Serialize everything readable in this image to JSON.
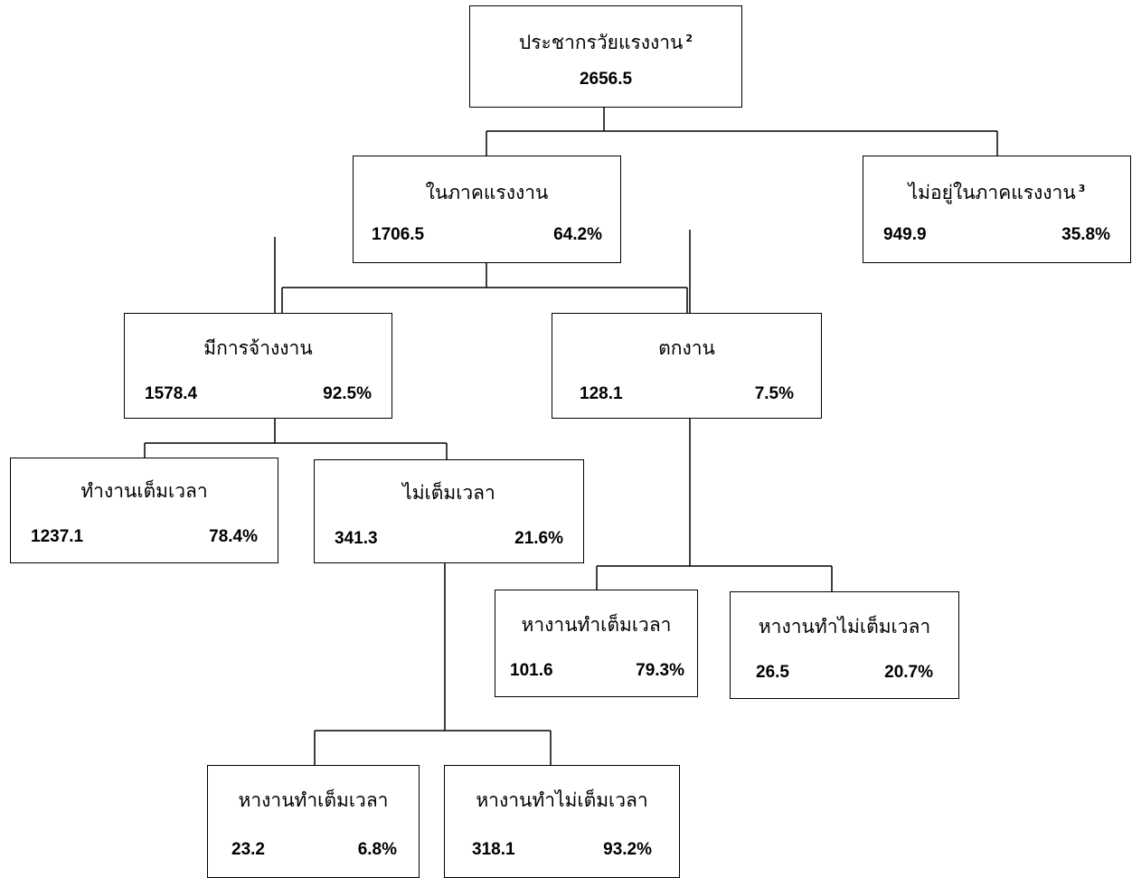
{
  "diagram": {
    "root": {
      "title": "ประชากรวัยแรงงาน",
      "note": "2",
      "value": "2656.5"
    },
    "labor_force": {
      "title": "ในภาคแรงงาน",
      "value": "1706.5",
      "percent": "64.2%"
    },
    "not_in_labor_force": {
      "title": "ไม่อยู่ในภาคแรงงาน",
      "note": "3",
      "value": "949.9",
      "percent": "35.8%"
    },
    "employed": {
      "title": "มีการจ้างงาน",
      "value": "1578.4",
      "percent": "92.5%"
    },
    "unemployed": {
      "title": "ตกงาน",
      "value": "128.1",
      "percent": "7.5%"
    },
    "full_time": {
      "title": "ทำงานเต็มเวลา",
      "value": "1237.1",
      "percent": "78.4%"
    },
    "part_time": {
      "title": "ไม่เต็มเวลา",
      "value": "341.3",
      "percent": "21.6%"
    },
    "unemp_seek_full": {
      "title": "หางานทำเต็มเวลา",
      "value": "101.6",
      "percent": "79.3%"
    },
    "unemp_seek_part": {
      "title": "หางานทำไม่เต็มเวลา",
      "value": "26.5",
      "percent": "20.7%"
    },
    "part_seek_full": {
      "title": "หางานทำเต็มเวลา",
      "value": "23.2",
      "percent": "6.8%"
    },
    "part_seek_part": {
      "title": "หางานทำไม่เต็มเวลา",
      "value": "318.1",
      "percent": "93.2%"
    }
  }
}
